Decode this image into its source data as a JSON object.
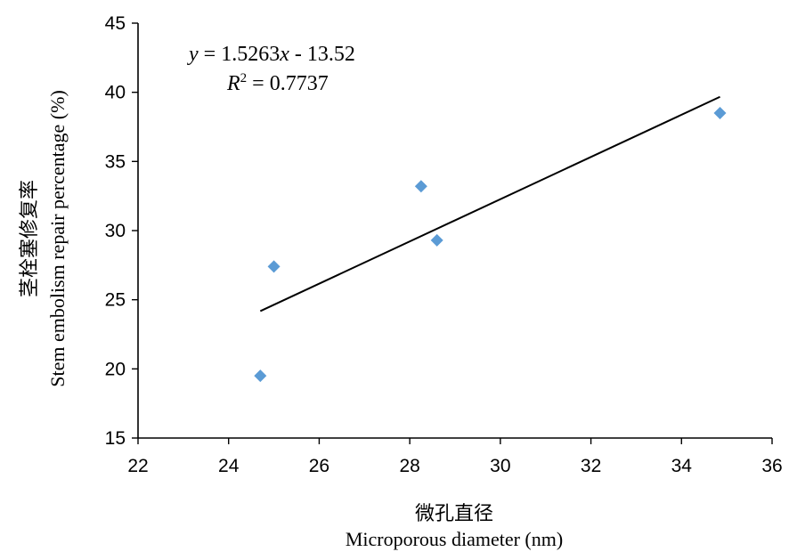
{
  "chart_data": {
    "type": "scatter",
    "x": [
      24.7,
      25.0,
      28.25,
      28.6,
      34.85
    ],
    "y": [
      19.5,
      27.4,
      33.2,
      29.3,
      38.5
    ],
    "marker": "diamond",
    "marker_color": "#5B9BD5",
    "trendline": {
      "type": "linear",
      "slope": 1.5263,
      "intercept": -13.52,
      "x_range": [
        24.7,
        34.85
      ],
      "color": "#000000",
      "equation": {
        "y_var": "y",
        "rhs": " = 1.5263",
        "x_var": "x",
        "tail": " - 13.52",
        "r_var": "R",
        "r_sup": "2",
        "r_val": " = 0.7737"
      }
    },
    "xlim": [
      22,
      36
    ],
    "ylim": [
      15,
      45
    ],
    "xticks": [
      "22",
      "24",
      "26",
      "28",
      "30",
      "32",
      "34",
      "36"
    ],
    "yticks": [
      "15",
      "20",
      "25",
      "30",
      "35",
      "40",
      "45"
    ],
    "xlabel_cn": "微孔直径",
    "xlabel_en": "Microporous diameter (nm)",
    "ylabel_cn": "茎栓塞修复率",
    "ylabel_en": "Stem embolism repair percentage (%)",
    "grid": false,
    "legend": "none"
  }
}
